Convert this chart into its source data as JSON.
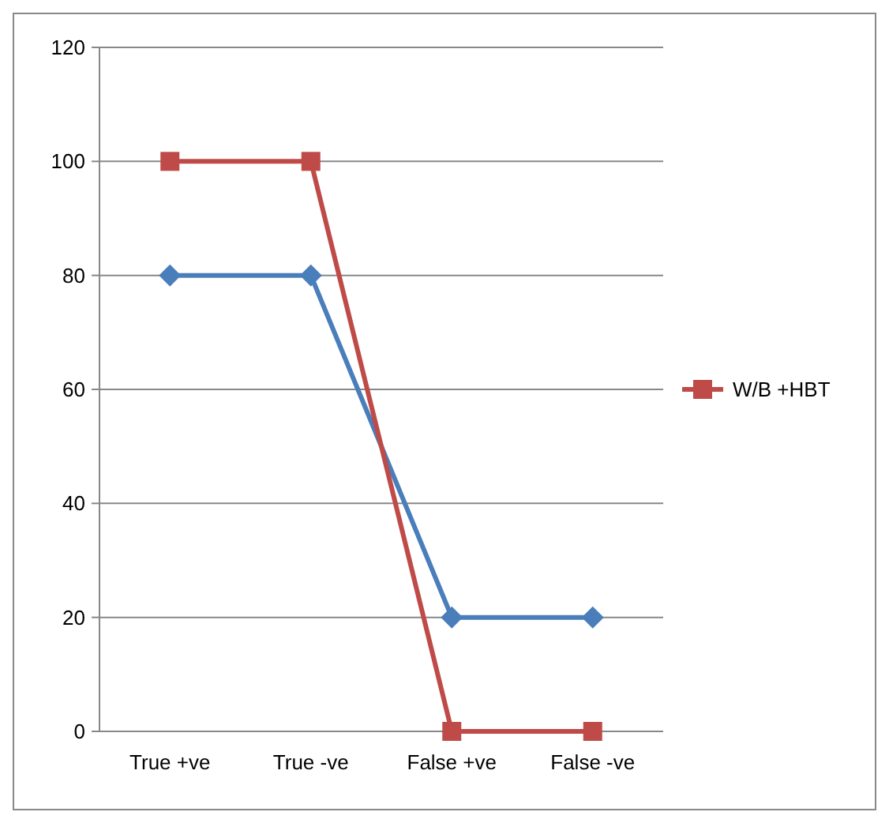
{
  "chart_data": {
    "type": "line",
    "categories": [
      "True +ve",
      "True -ve",
      "False +ve",
      "False -ve"
    ],
    "series": [
      {
        "color": "#4a7ebb",
        "marker": "diamond",
        "values": [
          80,
          80,
          20,
          20
        ]
      },
      {
        "name": "W/B +HBT",
        "color": "#be4b48",
        "marker": "square",
        "values": [
          100,
          100,
          0,
          0
        ]
      }
    ],
    "ylim": [
      0,
      120
    ],
    "yticks": [
      0,
      20,
      40,
      60,
      80,
      100,
      120
    ],
    "grid": "y",
    "legend": "right"
  }
}
